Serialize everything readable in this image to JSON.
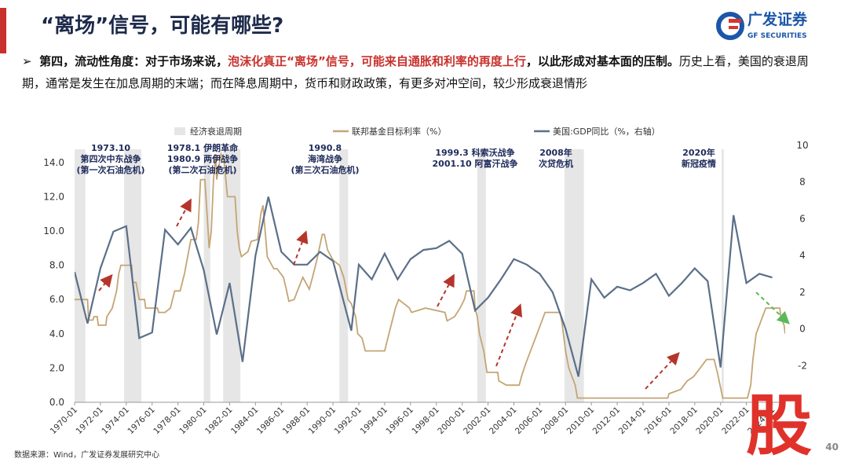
{
  "header": {
    "title": "“离场”信号，可能有哪些?",
    "logo_cn": "广发证券",
    "logo_en": "GF SECURITIES"
  },
  "bullet": {
    "marker": "➢",
    "segments": [
      {
        "text": "第四，流动性角度：对于市场来说，",
        "style": "bold"
      },
      {
        "text": "泡沫化真正“离场”信号，可能来自通胀和利率的再度上行",
        "style": "red"
      },
      {
        "text": "，以此形成对基本面的压制。",
        "style": "bold"
      },
      {
        "text": "历史上看，美国的衰退周期，通常是发生在加息周期的末端；而在降息周期中，货币和财政政策，有更多对冲空间，较少形成衰退情形",
        "style": "normal"
      }
    ]
  },
  "chart_data": {
    "type": "line",
    "xlim": [
      "1970-01",
      "2025-01"
    ],
    "xticks": [
      "1970-01",
      "1972-01",
      "1974-01",
      "1976-01",
      "1978-01",
      "1980-01",
      "1982-01",
      "1984-01",
      "1986-01",
      "1988-01",
      "1990-01",
      "1992-01",
      "1994-01",
      "1996-01",
      "1998-01",
      "2000-01",
      "2002-01",
      "2004-01",
      "2006-01",
      "2008-01",
      "2010-01",
      "2012-01",
      "2014-01",
      "2016-01",
      "2018-01",
      "2020-01",
      "2022-01",
      "2024-01"
    ],
    "ylim": [
      0,
      15
    ],
    "yticks": [
      {
        "value": 0,
        "label": "0.0"
      },
      {
        "value": 2,
        "label": "2.0"
      },
      {
        "value": 4,
        "label": "4.0"
      },
      {
        "value": 6,
        "label": "6.0"
      },
      {
        "value": 8,
        "label": "8.0"
      },
      {
        "value": 10,
        "label": "10.0"
      },
      {
        "value": 12,
        "label": "12.0"
      },
      {
        "value": 14,
        "label": "14.0"
      }
    ],
    "y2lim": [
      -4,
      10
    ],
    "y2ticks": [
      -2,
      0,
      2,
      4,
      6,
      8,
      10
    ],
    "recessions": {
      "name": "经济衰退周期",
      "color": "#e6e6e6",
      "periods": [
        [
          "1969-12",
          "1970-11"
        ],
        [
          "1973-11",
          "1975-03"
        ],
        [
          "1980-01",
          "1980-07"
        ],
        [
          "1981-07",
          "1982-11"
        ],
        [
          "1990-07",
          "1991-03"
        ],
        [
          "2001-03",
          "2001-11"
        ],
        [
          "2007-12",
          "2009-06"
        ],
        [
          "2020-02",
          "2020-04"
        ]
      ]
    },
    "series": [
      {
        "name": "联邦基金目标利率（%）",
        "color": "#c4a574",
        "axis": "y",
        "x": [
          "1970-01",
          "1971-01",
          "1971-02",
          "1971-06",
          "1971-07",
          "1971-10",
          "1971-11",
          "1972-06",
          "1972-07",
          "1972-12",
          "1973-04",
          "1973-06",
          "1973-08",
          "1974-06",
          "1974-07",
          "1974-10",
          "1975-01",
          "1975-06",
          "1975-07",
          "1976-06",
          "1976-07",
          "1977-01",
          "1977-06",
          "1977-10",
          "1978-03",
          "1978-07",
          "1978-10",
          "1979-01",
          "1979-06",
          "1979-08",
          "1979-10",
          "1980-02",
          "1980-04",
          "1980-06",
          "1980-08",
          "1980-10",
          "1980-12",
          "1981-01",
          "1981-05",
          "1981-08",
          "1981-11",
          "1982-06",
          "1982-08",
          "1982-10",
          "1982-12",
          "1983-06",
          "1983-09",
          "1984-03",
          "1984-06",
          "1984-08",
          "1984-10",
          "1984-12",
          "1985-06",
          "1985-09",
          "1986-03",
          "1986-06",
          "1986-08",
          "1987-01",
          "1987-04",
          "1987-09",
          "1988-03",
          "1988-06",
          "1988-10",
          "1989-03",
          "1989-05",
          "1989-08",
          "1990-01",
          "1990-07",
          "1990-11",
          "1991-03",
          "1991-06",
          "1991-10",
          "1991-12",
          "1992-04",
          "1992-07",
          "1994-01",
          "1994-04",
          "1994-08",
          "1994-11",
          "1995-02",
          "1995-07",
          "1995-12",
          "1996-02",
          "1997-03",
          "1998-09",
          "1998-11",
          "1999-06",
          "1999-11",
          "2000-03",
          "2000-05",
          "2000-12",
          "2001-01",
          "2001-03",
          "2001-05",
          "2001-09",
          "2001-12",
          "2002-10",
          "2002-11",
          "2003-06",
          "2004-06",
          "2004-08",
          "2004-12",
          "2005-06",
          "2005-12",
          "2006-06",
          "2007-08",
          "2007-10",
          "2008-01",
          "2008-04",
          "2008-10",
          "2008-12",
          "2015-12",
          "2016-01",
          "2016-12",
          "2017-06",
          "2017-12",
          "2018-06",
          "2018-12",
          "2019-07",
          "2019-10",
          "2020-03",
          "2022-02",
          "2022-05",
          "2022-07",
          "2022-10",
          "2023-01",
          "2023-07",
          "2024-08",
          "2024-09",
          "2024-12",
          "2025-01"
        ],
        "values": [
          6.0,
          6.0,
          4.8,
          4.8,
          5.0,
          5.0,
          4.5,
          4.5,
          5.0,
          5.5,
          6.5,
          7.5,
          8.0,
          8.0,
          7.0,
          7.0,
          6.0,
          6.0,
          5.5,
          5.5,
          5.25,
          5.25,
          5.5,
          6.5,
          6.5,
          7.5,
          8.5,
          9.5,
          9.5,
          10.5,
          13.0,
          13.0,
          11.0,
          9.0,
          10.0,
          13.0,
          14.5,
          13.0,
          14.5,
          14.0,
          12.0,
          12.0,
          10.0,
          9.0,
          8.5,
          8.8,
          9.4,
          9.5,
          11.0,
          11.5,
          10.0,
          8.5,
          7.8,
          7.8,
          7.3,
          6.5,
          5.9,
          6.0,
          6.5,
          7.3,
          6.6,
          7.3,
          8.3,
          9.8,
          9.8,
          8.9,
          8.3,
          8.0,
          7.3,
          6.0,
          5.75,
          5.0,
          4.0,
          3.75,
          3.0,
          3.0,
          3.75,
          4.75,
          5.5,
          6.0,
          5.75,
          5.5,
          5.25,
          5.5,
          5.25,
          4.75,
          5.0,
          5.5,
          6.0,
          6.5,
          6.5,
          5.5,
          5.0,
          4.0,
          3.0,
          1.75,
          1.75,
          1.25,
          1.0,
          1.0,
          1.5,
          2.25,
          3.25,
          4.25,
          5.25,
          5.25,
          4.5,
          3.0,
          2.0,
          1.0,
          0.25,
          0.25,
          0.5,
          0.75,
          1.25,
          1.5,
          2.0,
          2.5,
          2.5,
          1.75,
          0.25,
          0.25,
          1.0,
          2.5,
          4.0,
          4.5,
          5.5,
          5.5,
          5.0,
          4.5,
          4.0
        ]
      },
      {
        "name": "美国:GDP同比（%，右轴）",
        "color": "#5b6f88",
        "axis": "y2",
        "x": [
          "1970-01",
          "1971-01",
          "1972-01",
          "1973-01",
          "1974-01",
          "1975-01",
          "1976-01",
          "1977-01",
          "1978-01",
          "1979-01",
          "1980-01",
          "1981-01",
          "1982-01",
          "1983-01",
          "1984-01",
          "1985-01",
          "1986-01",
          "1987-01",
          "1988-01",
          "1989-01",
          "1990-01",
          "1991-06",
          "1992-01",
          "1993-01",
          "1994-01",
          "1995-01",
          "1996-01",
          "1997-01",
          "1998-01",
          "1999-01",
          "2000-01",
          "2001-01",
          "2002-01",
          "2003-01",
          "2004-01",
          "2005-01",
          "2006-01",
          "2007-01",
          "2008-01",
          "2009-01",
          "2010-01",
          "2011-01",
          "2012-01",
          "2013-01",
          "2014-01",
          "2015-01",
          "2016-01",
          "2017-01",
          "2018-01",
          "2019-01",
          "2020-01",
          "2021-01",
          "2022-01",
          "2023-01",
          "2024-01"
        ],
        "values": [
          3.1,
          0.3,
          3.3,
          5.3,
          5.6,
          -0.5,
          -0.2,
          5.4,
          4.6,
          5.5,
          3.2,
          -0.3,
          2.5,
          -1.8,
          4.0,
          7.2,
          4.2,
          3.5,
          3.5,
          4.2,
          3.7,
          -0.1,
          3.5,
          2.7,
          4.1,
          2.7,
          3.8,
          4.3,
          4.4,
          4.8,
          4.1,
          1.0,
          1.7,
          2.7,
          3.8,
          3.5,
          3.0,
          2.0,
          0.0,
          -2.6,
          2.7,
          1.7,
          2.3,
          2.1,
          2.5,
          3.0,
          1.8,
          2.5,
          3.3,
          2.6,
          -2.1,
          6.2,
          2.5,
          3.0,
          2.8
        ]
      }
    ],
    "annotations": [
      {
        "lines": [
          "1973.10",
          "第四次中东战争",
          "(第一次石油危机)"
        ]
      },
      {
        "lines": [
          "1978.1 伊朗革命",
          "1980.9 两伊战争",
          "(第二次石油危机)"
        ]
      },
      {
        "lines": [
          "1990.8",
          "海湾战争",
          "(第三次石油危机)"
        ]
      },
      {
        "lines": [
          "1999.3 科索沃战争",
          "2001.10 阿富汗战争"
        ]
      },
      {
        "lines": [
          "2008年",
          "次贷危机"
        ]
      },
      {
        "lines": [
          "2020年",
          "新冠疫情"
        ]
      }
    ]
  },
  "footer": {
    "source": "数据来源：Wind，广发证券发展研究中心",
    "page": "40",
    "watermark": "股"
  }
}
